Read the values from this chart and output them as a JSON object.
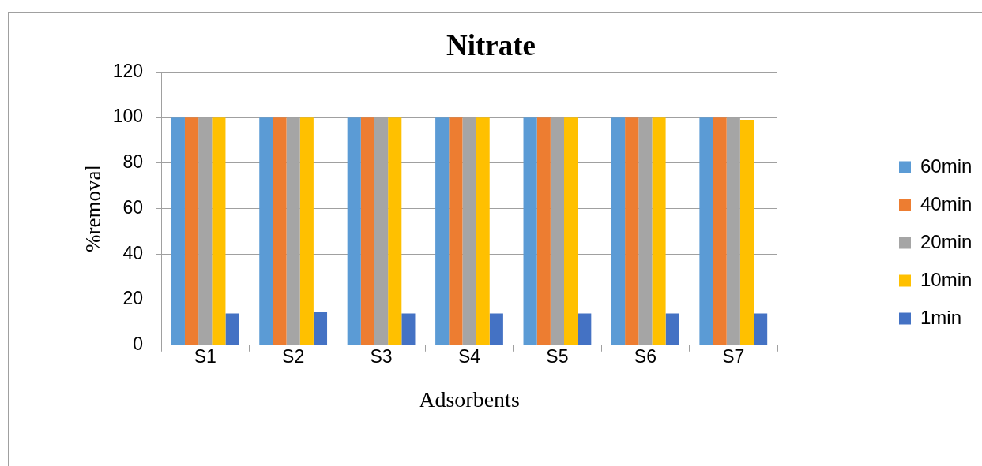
{
  "chart_data": {
    "type": "bar",
    "title": "Nitrate",
    "xlabel": "Adsorbents",
    "ylabel": "%removal",
    "categories": [
      "S1",
      "S2",
      "S3",
      "S4",
      "S5",
      "S6",
      "S7"
    ],
    "series": [
      {
        "name": "60min",
        "color": "#5b9bd5",
        "values": [
          100,
          100,
          100,
          100,
          100,
          100,
          100
        ]
      },
      {
        "name": "40min",
        "color": "#ed7d31",
        "values": [
          100,
          100,
          100,
          100,
          100,
          100,
          100
        ]
      },
      {
        "name": "20min",
        "color": "#a5a5a5",
        "values": [
          100,
          100,
          100,
          100,
          100,
          100,
          100
        ]
      },
      {
        "name": "10min",
        "color": "#ffc000",
        "values": [
          100,
          100,
          100,
          100,
          100,
          100,
          99
        ]
      },
      {
        "name": "1min",
        "color": "#4472c4",
        "values": [
          14,
          14.5,
          14,
          14,
          14,
          14,
          14
        ]
      }
    ],
    "ylim": [
      0,
      120
    ],
    "yticks": [
      0,
      20,
      40,
      60,
      80,
      100,
      120
    ],
    "grid": "y",
    "legend": "right"
  }
}
